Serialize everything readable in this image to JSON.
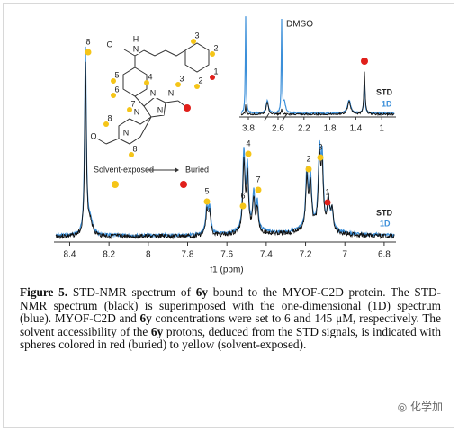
{
  "figure": {
    "main_axis": {
      "label": "f1 (ppm)",
      "xlim": [
        8.48,
        6.74
      ],
      "xticks": [
        8.4,
        8.2,
        8.0,
        7.8,
        7.6,
        7.4,
        7.2,
        7.0,
        6.8
      ]
    },
    "inset_axis": {
      "xticks": [
        3.8,
        2.6,
        2.2,
        1.8,
        1.4,
        1.0
      ]
    },
    "inset_annotation": "DMSO",
    "legend": [
      "STD",
      "1D"
    ],
    "peak_labels": [
      "8",
      "5",
      "6",
      "4",
      "7",
      "2",
      "3",
      "1"
    ],
    "exposure_scale": {
      "exposed": "Solvent-exposed",
      "buried": "Buried"
    },
    "structure": {
      "atoms": [
        "H",
        "N",
        "O",
        "N",
        "N",
        "N",
        "N",
        "N",
        "O"
      ],
      "labels": [
        "3",
        "2",
        "1",
        "2",
        "3",
        "4",
        "5",
        "6",
        "7",
        "8",
        "8"
      ]
    }
  },
  "caption": {
    "parts": [
      "Figure 5.",
      " STD-NMR spectrum of ",
      "6y",
      " bound to the MYOF-C2D protein. The STD-NMR spectrum (black) is superimposed with the one-dimensional (1D) spectrum (blue). MYOF-C2D and ",
      "6y",
      " concentrations were set to 6 and 145 μM, respectively. The solvent accessibility of the ",
      "6y",
      " protons, deduced from the STD signals, is indicated with spheres colored in red (buried) to yellow (solvent-exposed)."
    ]
  },
  "watermark": "化学加"
}
